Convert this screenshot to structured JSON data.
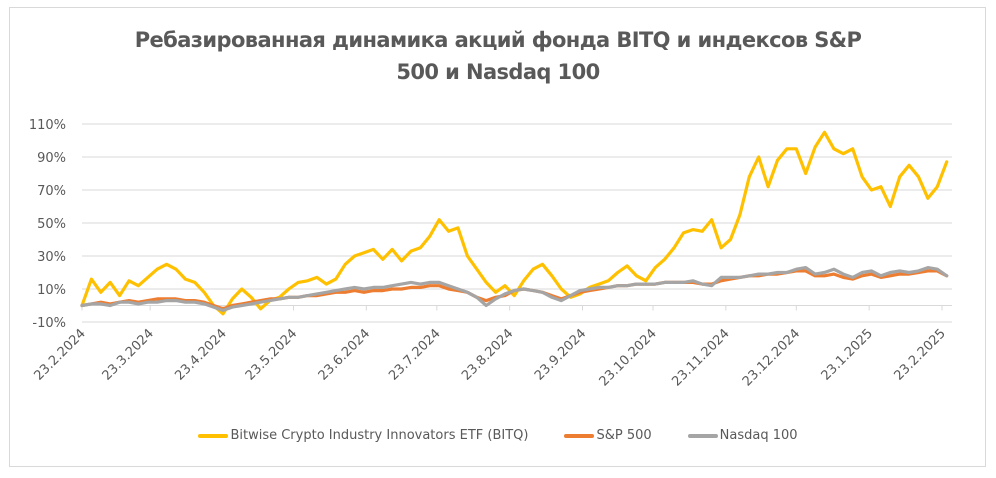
{
  "chart_data": {
    "type": "line",
    "title": "Ребазированная динамика акций фонда BITQ и индексов S&P 500 и Nasdaq 100",
    "title_lines": [
      "Ребазированная динамика акций фонда BITQ и индексов S&P",
      "500 и Nasdaq 100"
    ],
    "xlabel": "",
    "ylabel": "",
    "x_unit": "days since 23.2.2024",
    "xlim": [
      0,
      368
    ],
    "ylim": [
      -10,
      110
    ],
    "y_ticks": [
      -10,
      10,
      30,
      50,
      70,
      90,
      110
    ],
    "y_tick_labels": [
      "-10%",
      "10%",
      "30%",
      "50%",
      "70%",
      "90%",
      "110%"
    ],
    "x_ticks": [
      0,
      29,
      60,
      90,
      121,
      151,
      182,
      213,
      243,
      274,
      304,
      335,
      366
    ],
    "x_tick_labels": [
      "23.2.2024",
      "23.3.2024",
      "23.4.2024",
      "23.5.2024",
      "23.6.2024",
      "23.7.2024",
      "23.8.2024",
      "23.9.2024",
      "23.10.2024",
      "23.11.2024",
      "23.12.2024",
      "23.1.2025",
      "23.2.2025"
    ],
    "grid": true,
    "legend_position": "bottom",
    "x": [
      0,
      4,
      8,
      12,
      16,
      20,
      24,
      28,
      32,
      36,
      40,
      44,
      48,
      52,
      56,
      60,
      64,
      68,
      72,
      76,
      80,
      84,
      88,
      92,
      96,
      100,
      104,
      108,
      112,
      116,
      120,
      124,
      128,
      132,
      136,
      140,
      144,
      148,
      152,
      156,
      160,
      164,
      168,
      172,
      176,
      180,
      184,
      188,
      192,
      196,
      200,
      204,
      208,
      212,
      216,
      220,
      224,
      228,
      232,
      236,
      240,
      244,
      248,
      252,
      256,
      260,
      264,
      268,
      272,
      276,
      280,
      284,
      288,
      292,
      296,
      300,
      304,
      308,
      312,
      316,
      320,
      324,
      328,
      332,
      336,
      340,
      344,
      348,
      352,
      356,
      360,
      364,
      368
    ],
    "series": [
      {
        "name": "Bitwise Crypto Industry Innovators ETF (BITQ)",
        "color": "#FFC000",
        "values": [
          0,
          16,
          8,
          14,
          6,
          15,
          12,
          17,
          22,
          25,
          22,
          16,
          14,
          8,
          0,
          -5,
          4,
          10,
          5,
          -2,
          3,
          5,
          10,
          14,
          15,
          17,
          13,
          16,
          25,
          30,
          32,
          34,
          28,
          34,
          27,
          33,
          35,
          42,
          52,
          45,
          47,
          30,
          22,
          14,
          8,
          12,
          6,
          15,
          22,
          25,
          18,
          10,
          5,
          7,
          11,
          13,
          15,
          20,
          24,
          18,
          15,
          23,
          28,
          35,
          44,
          46,
          45,
          52,
          35,
          40,
          55,
          78,
          90,
          72,
          88,
          95,
          95,
          80,
          96,
          105,
          95,
          92,
          95,
          78,
          70,
          72,
          60,
          78,
          85,
          78,
          65,
          72,
          87
        ]
      },
      {
        "name": "S&P 500",
        "color": "#ED7D31",
        "values": [
          0,
          1,
          2,
          1,
          2,
          3,
          2,
          3,
          4,
          4,
          4,
          3,
          3,
          2,
          0,
          -2,
          0,
          1,
          2,
          3,
          4,
          4,
          5,
          5,
          6,
          6,
          7,
          8,
          8,
          9,
          8,
          9,
          9,
          10,
          10,
          11,
          11,
          12,
          12,
          10,
          9,
          8,
          5,
          3,
          5,
          6,
          9,
          10,
          9,
          8,
          6,
          4,
          6,
          8,
          9,
          10,
          11,
          12,
          12,
          13,
          13,
          13,
          14,
          14,
          14,
          14,
          13,
          13,
          15,
          16,
          17,
          18,
          18,
          19,
          19,
          20,
          21,
          21,
          18,
          18,
          19,
          17,
          16,
          18,
          19,
          17,
          18,
          19,
          19,
          20,
          21,
          21,
          18
        ]
      },
      {
        "name": "Nasdaq 100",
        "color": "#A5A5A5",
        "values": [
          0,
          1,
          1,
          0,
          2,
          2,
          1,
          2,
          2,
          3,
          3,
          2,
          2,
          1,
          -1,
          -3,
          -1,
          0,
          1,
          2,
          3,
          4,
          5,
          5,
          6,
          7,
          8,
          9,
          10,
          11,
          10,
          11,
          11,
          12,
          13,
          14,
          13,
          14,
          14,
          12,
          10,
          8,
          5,
          0,
          4,
          7,
          9,
          10,
          9,
          8,
          5,
          3,
          6,
          9,
          10,
          11,
          11,
          12,
          12,
          13,
          13,
          13,
          14,
          14,
          14,
          15,
          13,
          12,
          17,
          17,
          17,
          18,
          19,
          19,
          20,
          20,
          22,
          23,
          19,
          20,
          22,
          19,
          17,
          20,
          21,
          18,
          20,
          21,
          20,
          21,
          23,
          22,
          18
        ]
      }
    ]
  }
}
